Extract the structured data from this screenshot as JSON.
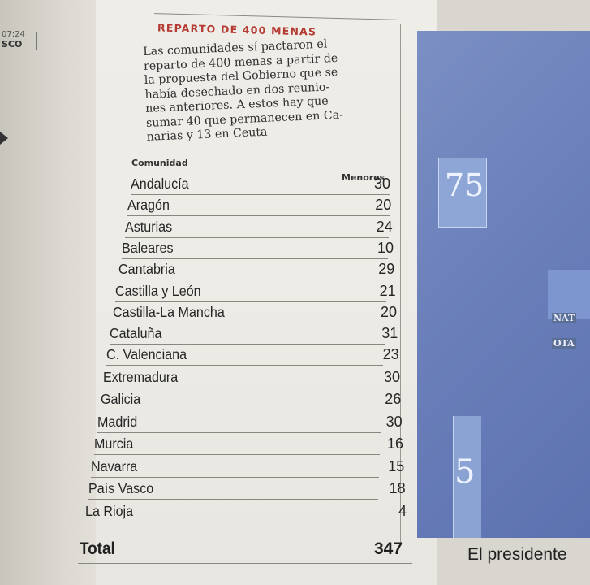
{
  "left_page": {
    "time": "07:24",
    "place": "SCO"
  },
  "article": {
    "headline": "REPARTO DE 400 MENAS",
    "intro_lines": [
      "Las comunidades sí pactaron el",
      "reparto de 400 menas a partir de",
      "la propuesta del Gobierno que se",
      "había desechado en dos reunio-",
      "nes anteriores. A estos hay que",
      "sumar 40 que permanecen en Ca-",
      "narias y 13 en Ceuta"
    ],
    "table": {
      "col_community": "Comunidad",
      "col_minors": "Menores",
      "rows": [
        {
          "community": "Andalucía",
          "minors": "30"
        },
        {
          "community": "Aragón",
          "minors": "20"
        },
        {
          "community": "Asturias",
          "minors": "24"
        },
        {
          "community": "Baleares",
          "minors": "10"
        },
        {
          "community": "Cantabria",
          "minors": "29"
        },
        {
          "community": "Castilla y León",
          "minors": "21"
        },
        {
          "community": "Castilla-La Mancha",
          "minors": "20"
        },
        {
          "community": "Cataluña",
          "minors": "31"
        },
        {
          "community": "C. Valenciana",
          "minors": "23"
        },
        {
          "community": "Extremadura",
          "minors": "30"
        },
        {
          "community": "Galicia",
          "minors": "26"
        },
        {
          "community": "Madrid",
          "minors": "30"
        },
        {
          "community": "Murcia",
          "minors": "16"
        },
        {
          "community": "Navarra",
          "minors": "15"
        },
        {
          "community": "País Vasco",
          "minors": "18"
        },
        {
          "community": "La Rioja",
          "minors": "4"
        }
      ],
      "total_label": "Total",
      "total_value": "347"
    }
  },
  "photo": {
    "sign_text_1": "75",
    "sign_text_2": "NAT",
    "sign_text_3": "OTA",
    "sign_text_4": "5",
    "caption": "El presidente"
  }
}
